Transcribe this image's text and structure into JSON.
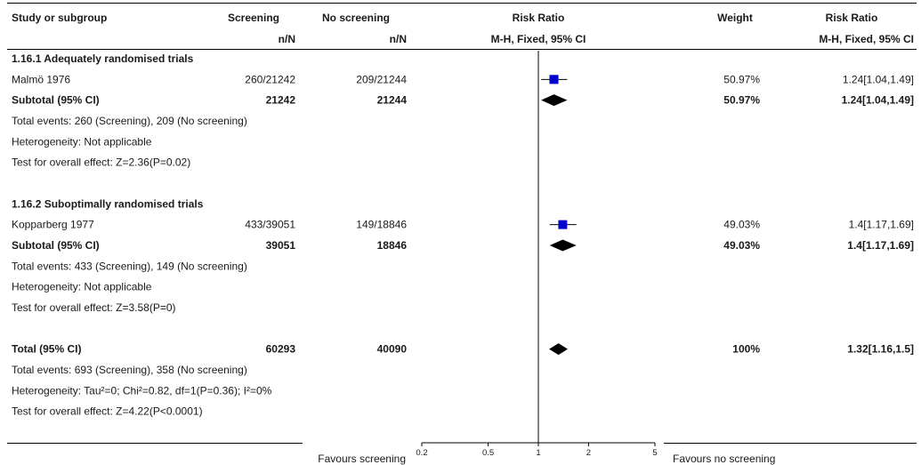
{
  "chart_data": {
    "type": "forest",
    "headers": {
      "study": "Study or subgroup",
      "screening": "Screening",
      "screening_sub": "n/N",
      "no_screening": "No screening",
      "no_screening_sub": "n/N",
      "rr_plot": "Risk Ratio",
      "rr_plot_sub": "M-H, Fixed, 95% CI",
      "weight": "Weight",
      "rr_text": "Risk Ratio",
      "rr_text_sub": "M-H, Fixed, 95% CI"
    },
    "x_scale": "log",
    "xlim": [
      0.2,
      5
    ],
    "ticks": [
      {
        "value": 0.2,
        "label": "0.2"
      },
      {
        "value": 0.5,
        "label": "0.5"
      },
      {
        "value": 1,
        "label": "1"
      },
      {
        "value": 2,
        "label": "2"
      },
      {
        "value": 5,
        "label": "5"
      }
    ],
    "favours_left": "Favours screening",
    "favours_right": "Favours no screening",
    "null_line": 1,
    "rows": [
      {
        "kind": "group",
        "label": "1.16.1 Adequately randomised trials"
      },
      {
        "kind": "study",
        "label": "Malmö 1976",
        "screening": "260/21242",
        "no_screening": "209/21244",
        "weight": "50.97%",
        "rr_text": "1.24[1.04,1.49]",
        "rr": 1.24,
        "lo": 1.04,
        "hi": 1.49,
        "w": 50.97
      },
      {
        "kind": "subtotal",
        "label": "Subtotal (95% CI)",
        "screening": "21242",
        "no_screening": "21244",
        "weight": "50.97%",
        "rr_text": "1.24[1.04,1.49]",
        "rr": 1.24,
        "lo": 1.04,
        "hi": 1.49
      },
      {
        "kind": "note",
        "label": "Total events: 260 (Screening), 209 (No screening)"
      },
      {
        "kind": "note",
        "label": "Heterogeneity: Not applicable"
      },
      {
        "kind": "note",
        "label": "Test for overall effect: Z=2.36(P=0.02)"
      },
      {
        "kind": "blank"
      },
      {
        "kind": "group",
        "label": "1.16.2 Suboptimally randomised trials"
      },
      {
        "kind": "study",
        "label": "Kopparberg 1977",
        "screening": "433/39051",
        "no_screening": "149/18846",
        "weight": "49.03%",
        "rr_text": "1.4[1.17,1.69]",
        "rr": 1.4,
        "lo": 1.17,
        "hi": 1.69,
        "w": 49.03
      },
      {
        "kind": "subtotal",
        "label": "Subtotal (95% CI)",
        "screening": "39051",
        "no_screening": "18846",
        "weight": "49.03%",
        "rr_text": "1.4[1.17,1.69]",
        "rr": 1.4,
        "lo": 1.17,
        "hi": 1.69
      },
      {
        "kind": "note",
        "label": "Total events: 433 (Screening), 149 (No screening)"
      },
      {
        "kind": "note",
        "label": "Heterogeneity: Not applicable"
      },
      {
        "kind": "note",
        "label": "Test for overall effect: Z=3.58(P=0)"
      },
      {
        "kind": "blank"
      },
      {
        "kind": "total",
        "label": "Total (95% CI)",
        "screening": "60293",
        "no_screening": "40090",
        "weight": "100%",
        "rr_text": "1.32[1.16,1.5]",
        "rr": 1.32,
        "lo": 1.16,
        "hi": 1.5
      },
      {
        "kind": "note",
        "label": "Total events: 693 (Screening), 358 (No screening)"
      },
      {
        "kind": "note",
        "label": "Heterogeneity: Tau²=0; Chi²=0.82, df=1(P=0.36); I²=0%"
      },
      {
        "kind": "note",
        "label": "Test for overall effect: Z=4.22(P<0.0001)"
      }
    ],
    "colors": {
      "study_marker": "#0000cc",
      "summary_marker": "#000000",
      "text": "#1a1a1a",
      "line": "#000000"
    }
  }
}
